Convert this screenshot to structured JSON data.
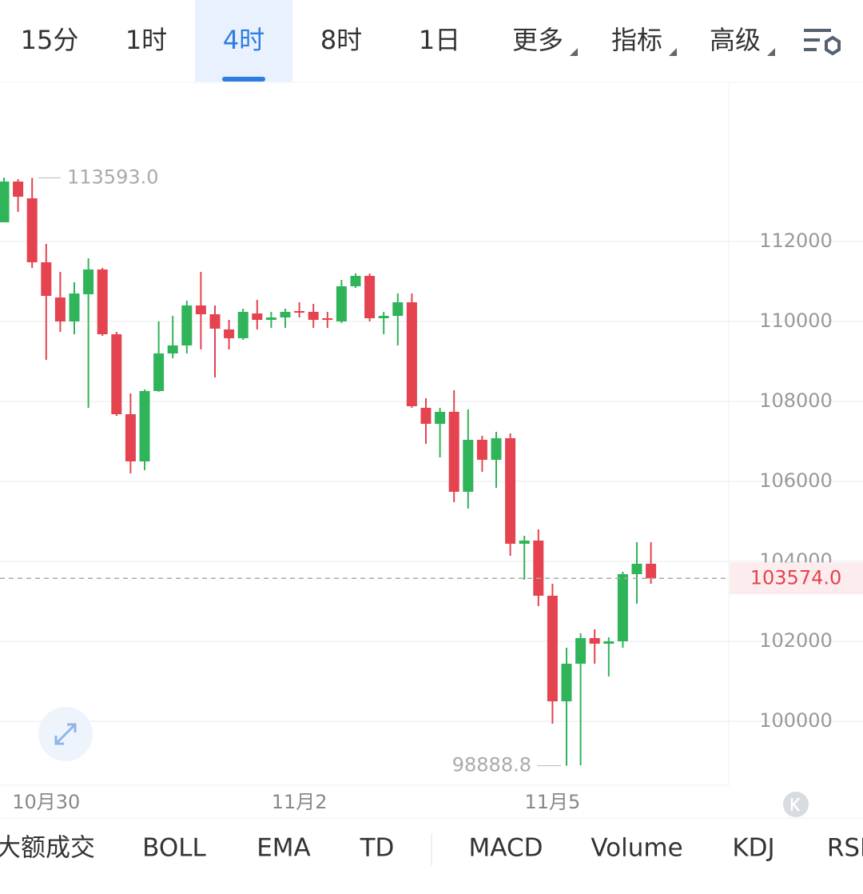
{
  "tabs": [
    "15分",
    "1时",
    "4时",
    "8时",
    "1日",
    "更多",
    "指标",
    "高级"
  ],
  "active_tab": 2,
  "indicators": [
    "大额成交",
    "BOLL",
    "EMA",
    "TD",
    "MACD",
    "Volume",
    "KDJ",
    "RSI"
  ],
  "chart_data": {
    "type": "candlestick",
    "categories": [
      null,
      null,
      null,
      "10月30",
      null,
      null,
      null,
      null,
      null,
      null,
      null,
      null,
      null,
      null,
      null,
      null,
      null,
      null,
      null,
      null,
      null,
      "11月2",
      null,
      null,
      null,
      null,
      null,
      null,
      null,
      null,
      null,
      null,
      null,
      null,
      null,
      null,
      null,
      null,
      null,
      "11月5",
      null,
      null,
      null,
      null,
      null,
      null,
      null
    ],
    "open": [
      112480,
      113500,
      113080,
      111480,
      110600,
      110000,
      110680,
      111300,
      109680,
      107680,
      106500,
      108260,
      109200,
      109400,
      110400,
      110180,
      109800,
      109580,
      110200,
      110040,
      110100,
      110260,
      110240,
      110080,
      110000,
      110880,
      111140,
      110080,
      110140,
      110480,
      107840,
      107440,
      107740,
      105740,
      107040,
      106540,
      107080,
      104440,
      104520,
      103140,
      100500,
      101440,
      102080,
      101940,
      102000,
      103680,
      103940
    ],
    "high": [
      113600,
      113560,
      113593,
      111940,
      111240,
      110980,
      111580,
      111340,
      109740,
      108200,
      108300,
      110000,
      110140,
      110520,
      111240,
      110400,
      110040,
      110320,
      110540,
      110240,
      110320,
      110480,
      110440,
      110240,
      111040,
      111200,
      111200,
      110240,
      110700,
      110700,
      108080,
      107840,
      108280,
      107800,
      107140,
      107240,
      107200,
      104640,
      104800,
      103440,
      101840,
      102200,
      102300,
      102100,
      103740,
      104480,
      104480
    ],
    "low": [
      112480,
      112740,
      111340,
      109040,
      109740,
      109680,
      107840,
      109640,
      107640,
      106200,
      106280,
      108240,
      109080,
      109200,
      109300,
      108600,
      109300,
      109540,
      109800,
      109840,
      109840,
      110100,
      109840,
      109840,
      109960,
      110840,
      110000,
      109680,
      109400,
      107840,
      106940,
      106600,
      105480,
      105320,
      106240,
      105840,
      104140,
      103540,
      102880,
      99940,
      98888.8,
      98900,
      101440,
      101120,
      101840,
      102940,
      103440
    ],
    "close": [
      113500,
      113120,
      111480,
      110640,
      110000,
      110700,
      111300,
      109680,
      107680,
      106500,
      108260,
      109200,
      109400,
      110400,
      110180,
      109820,
      109580,
      110240,
      110040,
      110100,
      110240,
      110220,
      110040,
      110040,
      110880,
      111140,
      110080,
      110140,
      110480,
      107880,
      107440,
      107740,
      105740,
      107040,
      106540,
      107080,
      104440,
      104520,
      103140,
      100500,
      101440,
      102080,
      101940,
      102000,
      103680,
      103940,
      103574
    ],
    "up_color": "#2fb45a",
    "down_color": "#e4434f",
    "ylim": [
      98400,
      115980
    ],
    "yticks": [
      100000,
      102000,
      104000,
      106000,
      108000,
      110000,
      112000
    ],
    "grid": true,
    "annotations": {
      "max": {
        "value": 113593,
        "label": "113593.0"
      },
      "min": {
        "value": 98888.8,
        "label": "98888.8"
      },
      "last": {
        "value": 103574,
        "label": "103574.0"
      }
    }
  }
}
